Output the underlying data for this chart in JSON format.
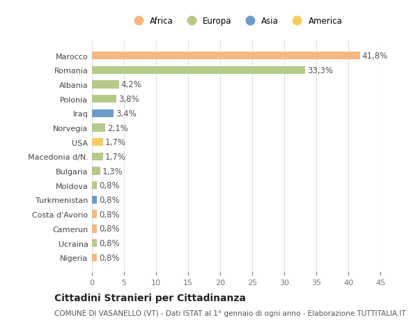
{
  "countries": [
    "Nigeria",
    "Ucraina",
    "Camerun",
    "Costa d'Avorio",
    "Turkmenistan",
    "Moldova",
    "Bulgaria",
    "Macedonia d/N.",
    "USA",
    "Norvegia",
    "Iraq",
    "Polonia",
    "Albania",
    "Romania",
    "Marocco"
  ],
  "values": [
    0.8,
    0.8,
    0.8,
    0.8,
    0.8,
    0.8,
    1.3,
    1.7,
    1.7,
    2.1,
    3.4,
    3.8,
    4.2,
    33.3,
    41.8
  ],
  "continents": [
    "Africa",
    "Europa",
    "Africa",
    "Africa",
    "Asia",
    "Europa",
    "Europa",
    "Europa",
    "America",
    "Europa",
    "Asia",
    "Europa",
    "Europa",
    "Europa",
    "Africa"
  ],
  "colors": {
    "Africa": "#F5B880",
    "Europa": "#B5C98A",
    "Asia": "#6B9BC8",
    "America": "#F5CC60"
  },
  "legend_order": [
    "Africa",
    "Europa",
    "Asia",
    "America"
  ],
  "xlim": [
    0,
    45
  ],
  "xticks": [
    0,
    5,
    10,
    15,
    20,
    25,
    30,
    35,
    40,
    45
  ],
  "title": "Cittadini Stranieri per Cittadinanza",
  "subtitle": "COMUNE DI VASANELLO (VT) - Dati ISTAT al 1° gennaio di ogni anno - Elaborazione TUTTITALIA.IT",
  "bg_color": "#FFFFFF",
  "grid_color": "#E0E0E0",
  "bar_height": 0.55,
  "label_fontsize": 8.5,
  "tick_fontsize": 8,
  "title_fontsize": 10,
  "subtitle_fontsize": 7.5
}
